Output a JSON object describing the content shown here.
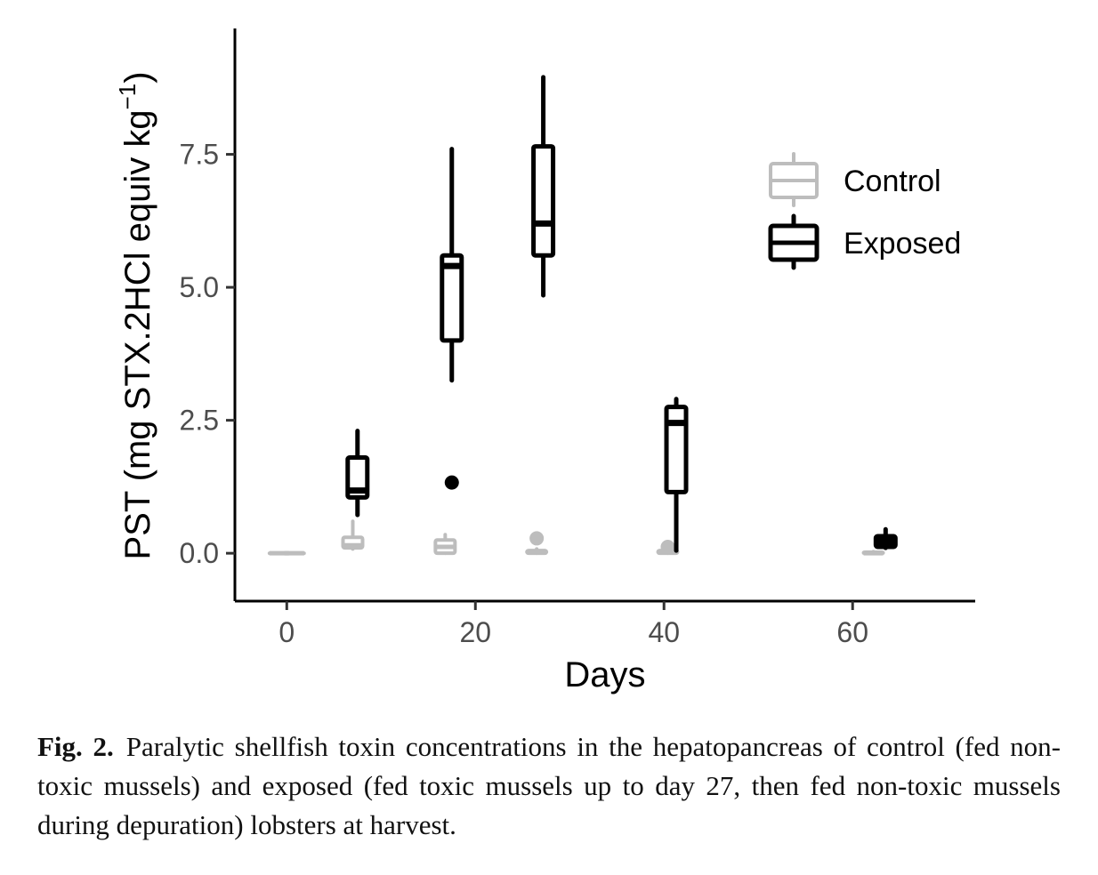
{
  "chart_data": {
    "type": "box",
    "xlabel": "Days",
    "ylabel_main": "PST (mg STX.2HCl equiv  kg",
    "ylabel_sup": "−1",
    "ylabel_close": ")",
    "xlim": [
      -5.5,
      73
    ],
    "ylim": [
      -0.9,
      9.8
    ],
    "xticks": [
      0,
      20,
      40,
      60
    ],
    "xtick_labels": [
      "0",
      "20",
      "40",
      "60"
    ],
    "yticks": [
      0.0,
      2.5,
      5.0,
      7.5
    ],
    "ytick_labels": [
      "0.0",
      "2.5",
      "5.0",
      "7.5"
    ],
    "grid": false,
    "legend_position": "top-right",
    "series": [
      {
        "name": "Control",
        "color": "#bdbdbd",
        "boxes": [
          {
            "x": -0.8,
            "min": 0.0,
            "q1": 0.0,
            "median": 0.0,
            "q3": 0.0,
            "max": 0.0,
            "outliers": []
          },
          {
            "x": 0.8,
            "min": 0.0,
            "q1": 0.0,
            "median": 0.0,
            "q3": 0.0,
            "max": 0.0,
            "outliers": []
          },
          {
            "x": 7.0,
            "min": 0.08,
            "q1": 0.1,
            "median": 0.15,
            "q3": 0.3,
            "max": 0.6,
            "outliers": []
          },
          {
            "x": 16.8,
            "min": 0.0,
            "q1": 0.0,
            "median": 0.12,
            "q3": 0.25,
            "max": 0.35,
            "outliers": []
          },
          {
            "x": 26.5,
            "min": 0.0,
            "q1": 0.0,
            "median": 0.02,
            "q3": 0.05,
            "max": 0.08,
            "outliers": [
              0.28
            ]
          },
          {
            "x": 40.4,
            "min": 0.0,
            "q1": 0.0,
            "median": 0.02,
            "q3": 0.05,
            "max": 0.1,
            "outliers": [
              0.12
            ]
          },
          {
            "x": 62.2,
            "min": 0.0,
            "q1": 0.0,
            "median": 0.0,
            "q3": 0.02,
            "max": 0.03,
            "outliers": []
          }
        ]
      },
      {
        "name": "Exposed",
        "color": "#000000",
        "boxes": [
          {
            "x": 7.5,
            "min": 0.72,
            "q1": 1.05,
            "median": 1.18,
            "q3": 1.8,
            "max": 2.3,
            "outliers": []
          },
          {
            "x": 17.5,
            "min": 3.25,
            "q1": 4.0,
            "median": 5.4,
            "q3": 5.6,
            "max": 7.6,
            "outliers": [
              1.33
            ]
          },
          {
            "x": 27.2,
            "min": 4.85,
            "q1": 5.6,
            "median": 6.2,
            "q3": 7.65,
            "max": 8.95,
            "outliers": []
          },
          {
            "x": 41.3,
            "min": 0.05,
            "q1": 1.15,
            "median": 2.45,
            "q3": 2.75,
            "max": 2.9,
            "outliers": []
          },
          {
            "x": 63.5,
            "min": 0.1,
            "q1": 0.12,
            "median": 0.22,
            "q3": 0.32,
            "max": 0.45,
            "outliers": []
          }
        ]
      }
    ]
  },
  "caption": {
    "label": "Fig. 2.",
    "text": "Paralytic shellfish toxin concentrations in the hepatopancreas of control (fed non-toxic mussels) and exposed (fed toxic mussels up to day 27, then fed non-toxic mussels during depuration) lobsters at harvest."
  }
}
